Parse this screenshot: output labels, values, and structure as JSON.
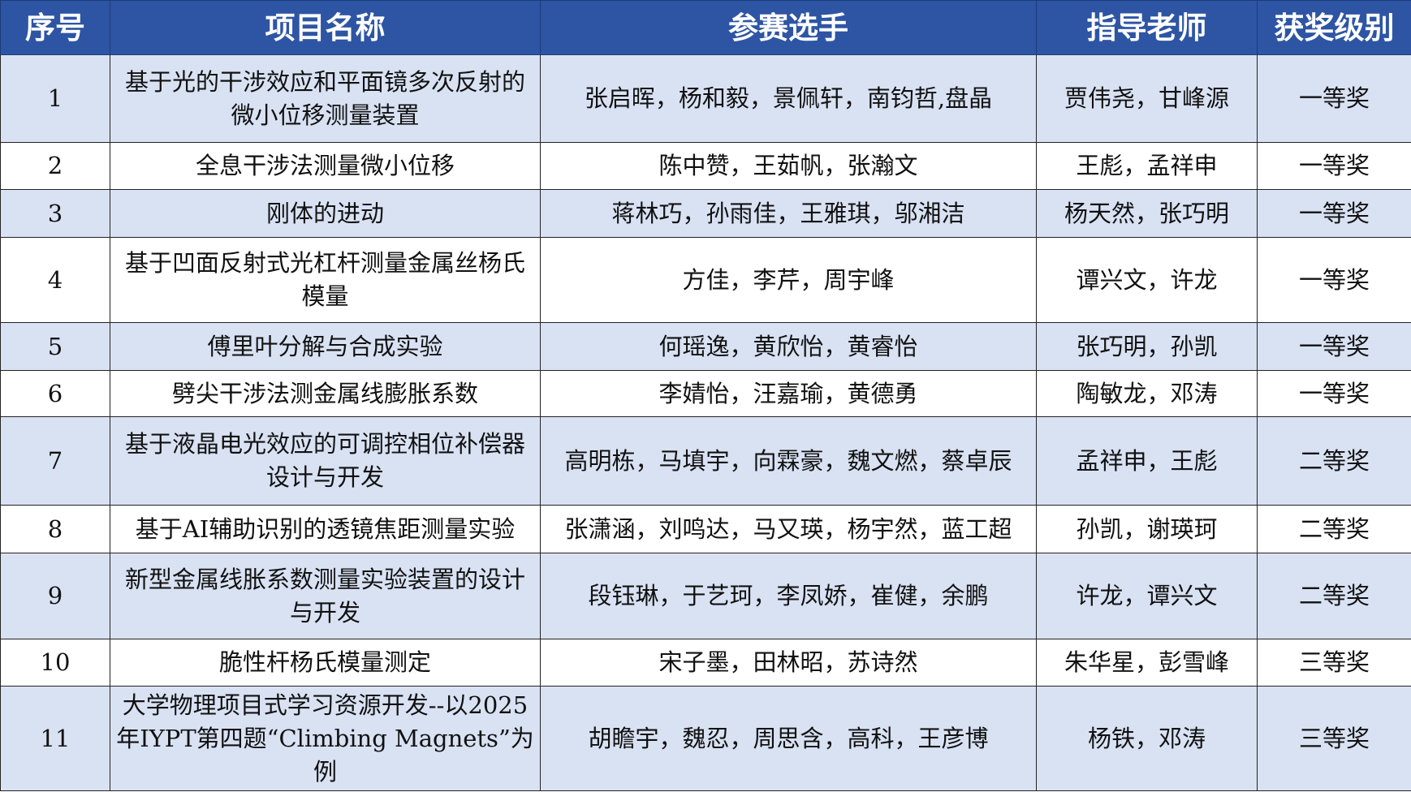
{
  "table": {
    "headers": [
      "序号",
      "项目名称",
      "参赛选手",
      "指导老师",
      "获奖级别"
    ],
    "rows": [
      {
        "no": "1",
        "project": "基于光的干涉效应和平面镜多次反射的微小位移测量装置",
        "students": "张启晖，杨和毅，景佩轩，南钧哲,盘晶",
        "advisors": "贾伟尧，甘峰源",
        "award": "一等奖"
      },
      {
        "no": "2",
        "project": "全息干涉法测量微小位移",
        "students": "陈中赞，王茹帆，张瀚文",
        "advisors": "王彪，孟祥申",
        "award": "一等奖"
      },
      {
        "no": "3",
        "project": "刚体的进动",
        "students": "蒋林巧，孙雨佳，王雅琪，邬湘洁",
        "advisors": "杨天然，张巧明",
        "award": "一等奖"
      },
      {
        "no": "4",
        "project": "基于凹面反射式光杠杆测量金属丝杨氏模量",
        "students": "方佳，李芹，周宇峰",
        "advisors": "谭兴文，许龙",
        "award": "一等奖"
      },
      {
        "no": "5",
        "project": "傅里叶分解与合成实验",
        "students": "何瑶逸，黄欣怡，黄睿怡",
        "advisors": "张巧明，孙凯",
        "award": "一等奖"
      },
      {
        "no": "6",
        "project": "劈尖干涉法测金属线膨胀系数",
        "students": "李婧怡，汪嘉瑜，黄德勇",
        "advisors": "陶敏龙，邓涛",
        "award": "一等奖"
      },
      {
        "no": "7",
        "project": "基于液晶电光效应的可调控相位补偿器设计与开发",
        "students": "高明栋，马填宇，向霖豪，魏文燃，蔡卓辰",
        "advisors": "孟祥申，王彪",
        "award": "二等奖"
      },
      {
        "no": "8",
        "project": "基于AI辅助识别的透镜焦距测量实验",
        "students": "张潇涵，刘鸣达，马又瑛，杨宇然，蓝工超",
        "advisors": "孙凯，谢瑛珂",
        "award": "二等奖"
      },
      {
        "no": "9",
        "project": "新型金属线胀系数测量实验装置的设计与开发",
        "students": "段钰琳，于艺珂，李凤娇，崔健，余鹏",
        "advisors": "许龙，谭兴文",
        "award": "二等奖"
      },
      {
        "no": "10",
        "project": "脆性杆杨氏模量测定",
        "students": "宋子墨，田林昭，苏诗然",
        "advisors": "朱华星，彭雪峰",
        "award": "三等奖"
      },
      {
        "no": "11",
        "project": "大学物理项目式学习资源开发--以2025年IYPT第四题“Climbing Magnets”为例",
        "students": "胡瞻宇，魏忍，周思含，高科，王彦博",
        "advisors": "杨铁，邓涛",
        "award": "三等奖"
      }
    ]
  },
  "colors": {
    "header_bg": "#2e55a4",
    "alt_row_bg": "#d9e2f3"
  }
}
